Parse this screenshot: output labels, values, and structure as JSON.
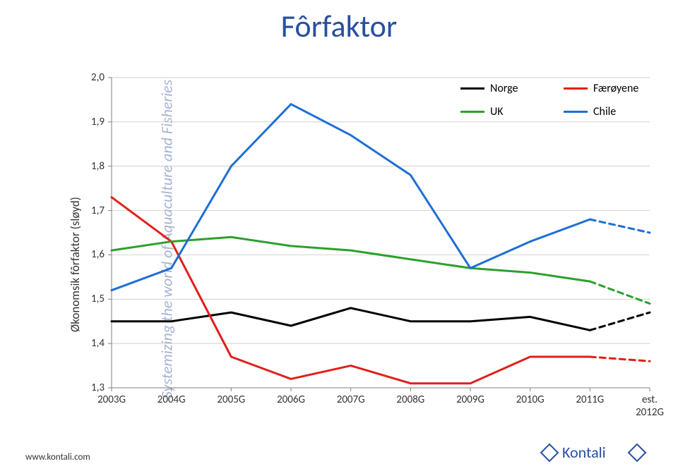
{
  "page": {
    "title": "Fôrfaktor",
    "side_caption": "Systemizing the world of Aquaculture and Fisheries",
    "footer_url": "www.kontali.com",
    "footer_logo_text": "Kontali"
  },
  "chart": {
    "type": "line",
    "y_axis_title": "Økonomsik fôrfaktor (sløyd)",
    "ylim": [
      1.3,
      2.0
    ],
    "ytick_step": 0.1,
    "y_ticks": [
      "1,3",
      "1,4",
      "1,5",
      "1,6",
      "1,7",
      "1,8",
      "1,9",
      "2,0"
    ],
    "x_categories": [
      "2003G",
      "2004G",
      "2005G",
      "2006G",
      "2007G",
      "2008G",
      "2009G",
      "2010G",
      "2011G",
      "est.\n2012G"
    ],
    "plot_background": "#ffffff",
    "grid_color": "#bfbfbf",
    "grid_on": true,
    "thin_grid_width": 0.7,
    "series": [
      {
        "name": "Norge",
        "legend_label": "Norge",
        "color": "#000000",
        "line_width": 3,
        "data": [
          1.45,
          1.45,
          1.47,
          1.44,
          1.48,
          1.45,
          1.45,
          1.46,
          1.43,
          null
        ],
        "forecast_from_index": 8,
        "forecast_value": 1.47
      },
      {
        "name": "Færøyene",
        "legend_label": "Færøyene",
        "color": "#e0201b",
        "line_width": 3,
        "data": [
          1.73,
          1.63,
          1.37,
          1.32,
          1.35,
          1.31,
          1.31,
          1.37,
          1.37,
          null
        ],
        "forecast_from_index": 8,
        "forecast_value": 1.36
      },
      {
        "name": "UK",
        "legend_label": "UK",
        "color": "#2ca02c",
        "line_width": 3,
        "data": [
          1.61,
          1.63,
          1.64,
          1.62,
          1.61,
          1.59,
          1.57,
          1.56,
          1.54,
          null
        ],
        "forecast_from_index": 8,
        "forecast_value": 1.49
      },
      {
        "name": "Chile",
        "legend_label": "Chile",
        "color": "#1f6fd4",
        "line_width": 3,
        "data": [
          1.52,
          1.57,
          1.8,
          1.94,
          1.87,
          1.78,
          1.57,
          1.63,
          1.68,
          null
        ],
        "forecast_from_index": 8,
        "forecast_value": 1.65
      }
    ],
    "legend_layout": {
      "rows": [
        [
          "Norge",
          "Færøyene"
        ],
        [
          "UK",
          "Chile"
        ]
      ]
    },
    "fonts": {
      "title_fontsize": 44,
      "axis_label_fontsize": 15,
      "y_axis_title_fontsize": 17,
      "legend_fontsize": 16
    }
  }
}
